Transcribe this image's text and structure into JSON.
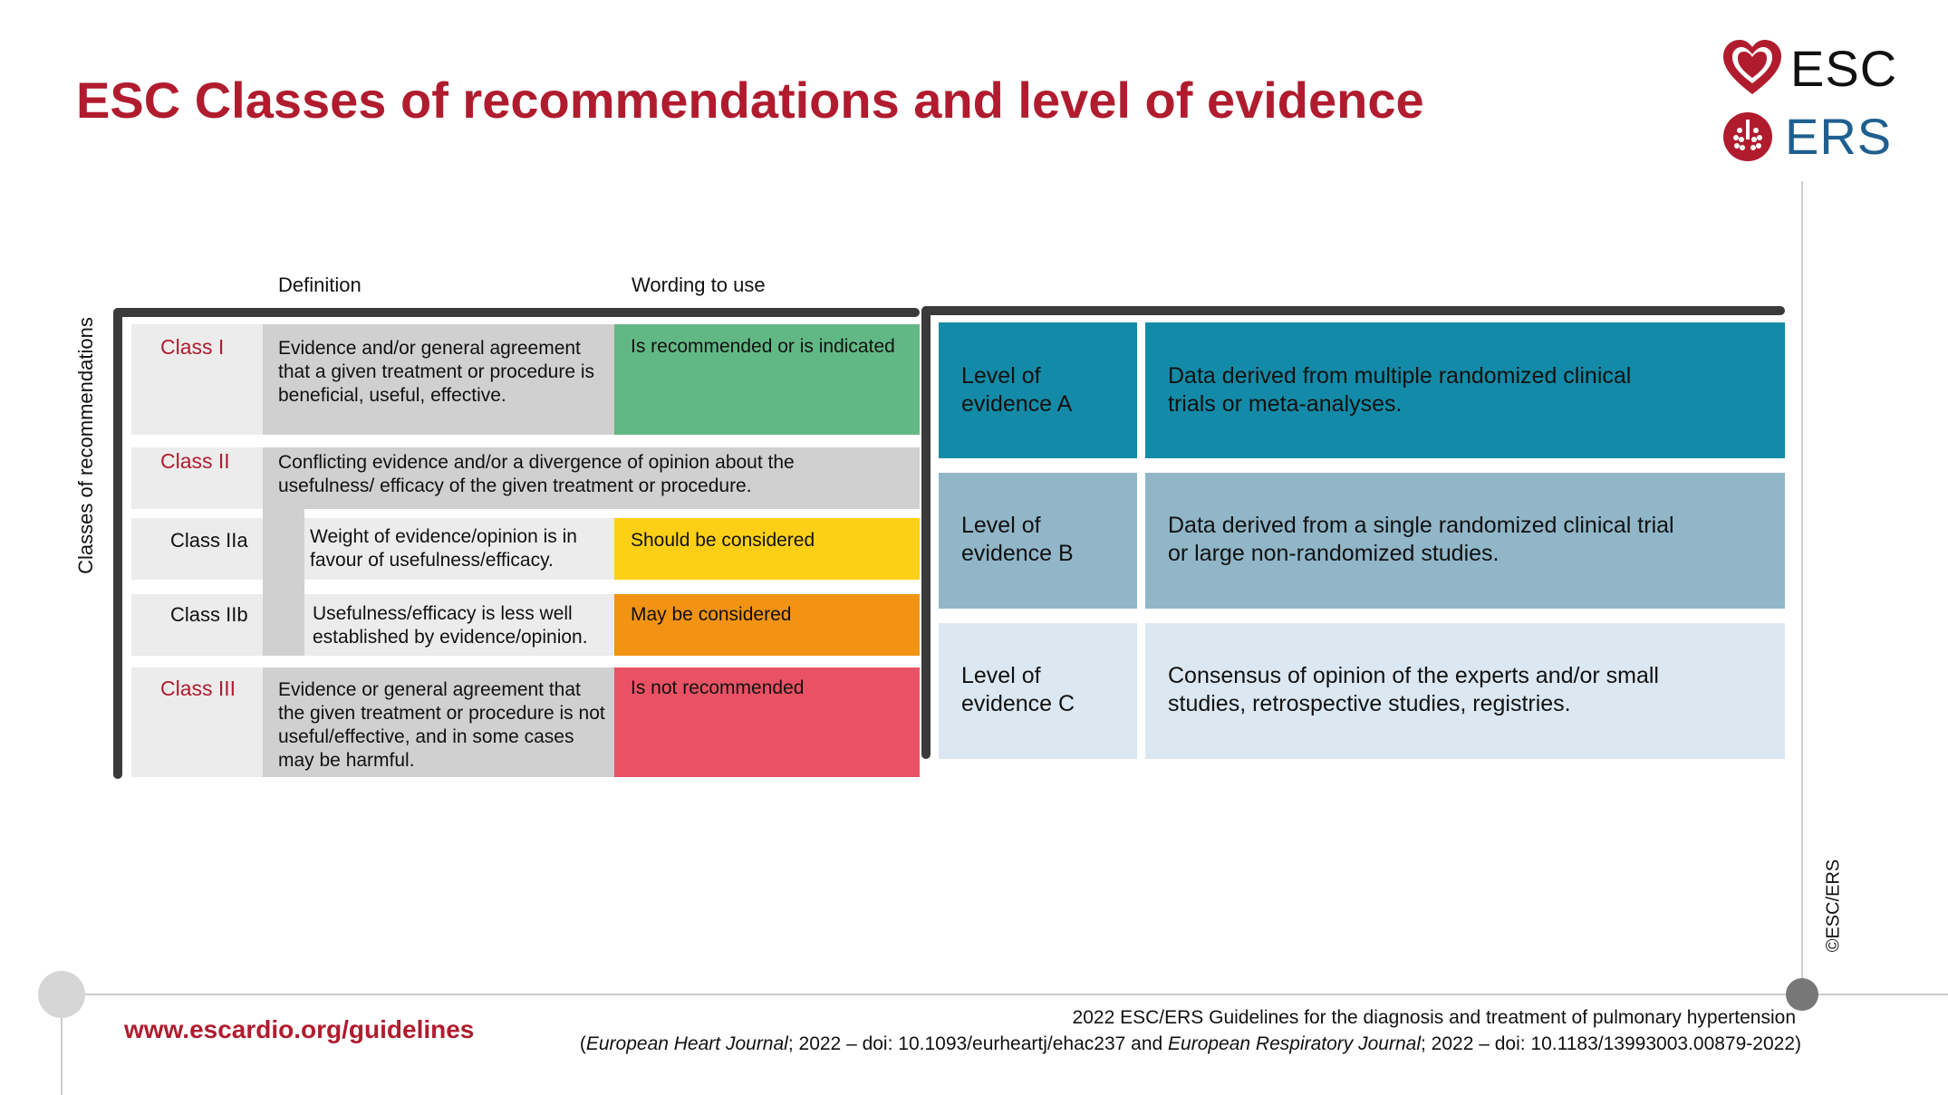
{
  "title": "ESC Classes of recommendations and level of evidence",
  "logo": {
    "esc": "ESC",
    "ers": "ERS"
  },
  "table": {
    "side_label": "Classes of recommendations",
    "headers": {
      "definition": "Definition",
      "wording": "Wording to use"
    },
    "class1": {
      "label": "Class I",
      "definition": "Evidence and/or general agreement that a given treatment or procedure is beneficial, useful, effective.",
      "wording": "Is recommended or is indicated"
    },
    "class2": {
      "label": "Class II",
      "definition": "Conflicting evidence and/or a divergence of opinion about the usefulness/ efficacy of the given treatment or procedure."
    },
    "class2a": {
      "label": "Class IIa",
      "definition": "Weight of evidence/opinion is in favour of usefulness/efficacy.",
      "wording": "Should be considered"
    },
    "class2b": {
      "label": "Class IIb",
      "definition": "Usefulness/efficacy is less well established by evidence/opinion.",
      "wording": "May be considered"
    },
    "class3": {
      "label": "Class III",
      "definition": "Evidence or general agreement that the given treatment or procedure is not useful/effective, and in some cases may be harmful.",
      "wording": "Is not recommended"
    }
  },
  "levels": [
    {
      "label": "Level of evidence A",
      "text": "Data derived from multiple randomized clinical trials or meta-analyses."
    },
    {
      "label": "Level of evidence B",
      "text": "Data derived from a single randomized clinical trial or large non-randomized studies."
    },
    {
      "label": "Level of evidence C",
      "text": "Consensus of opinion of the experts and/or small studies, retrospective studies, registries."
    }
  ],
  "copyright": "©ESC/ERS",
  "footer": {
    "url": "www.escardio.org/guidelines",
    "citation_line1": "2022 ESC/ERS Guidelines for the diagnosis and treatment of pulmonary hypertension",
    "citation_open": "(",
    "journal1": "European Heart Journal",
    "doi1": "; 2022 – doi: 10.1093/eurheartj/ehac237 and ",
    "journal2": "European Respiratory Journal",
    "doi2": "; 2022 – doi: 10.1183/13993003.00879-2022)"
  },
  "colors": {
    "brand_red": "#b01c2e",
    "class1": "#62b884",
    "class2a": "#fdd017",
    "class2b": "#f29314",
    "class3": "#e85264",
    "levelA": "#138ba8",
    "levelB": "#90b6c8",
    "levelC": "#dbe7f1"
  }
}
